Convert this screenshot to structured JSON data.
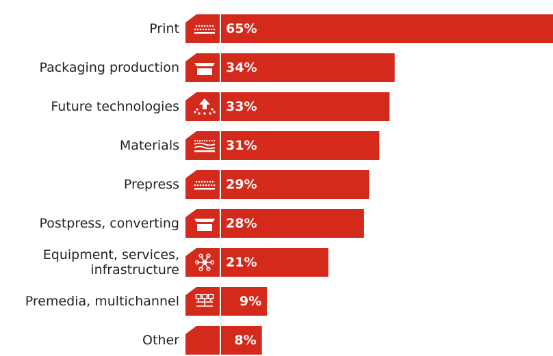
{
  "chart_data": {
    "type": "bar",
    "orientation": "horizontal",
    "categories": [
      "Print",
      "Packaging production",
      "Future technologies",
      "Materials",
      "Prepress",
      "Postpress, converting",
      "Equipment, services, infrastructure",
      "Premedia, multichannel",
      "Other"
    ],
    "category_lines": [
      [
        "Print"
      ],
      [
        "Packaging production"
      ],
      [
        "Future technologies"
      ],
      [
        "Materials"
      ],
      [
        "Prepress"
      ],
      [
        "Postpress, converting"
      ],
      [
        "Equipment, services,",
        "infrastructure"
      ],
      [
        "Premedia, multichannel"
      ],
      [
        "Other"
      ]
    ],
    "values": [
      65,
      34,
      33,
      31,
      29,
      28,
      21,
      9,
      8
    ],
    "value_labels": [
      "65%",
      "34%",
      "33%",
      "31%",
      "29%",
      "28%",
      "21%",
      "9%",
      "8%"
    ],
    "icons": [
      "printer-icon",
      "box-icon",
      "upload-cloud-icon",
      "material-layers-icon",
      "printer-icon",
      "box-icon",
      "network-hub-icon",
      "multichannel-tree-icon",
      "blank-icon"
    ],
    "title": "",
    "xlabel": "",
    "ylabel": "",
    "xlim": [
      0,
      65
    ],
    "grid": false,
    "legend": "none",
    "colors": {
      "bar": "#d42a1c",
      "icon_tile": "#d42a1c",
      "value_text": "#ffffff",
      "category_text": "#222222"
    }
  }
}
